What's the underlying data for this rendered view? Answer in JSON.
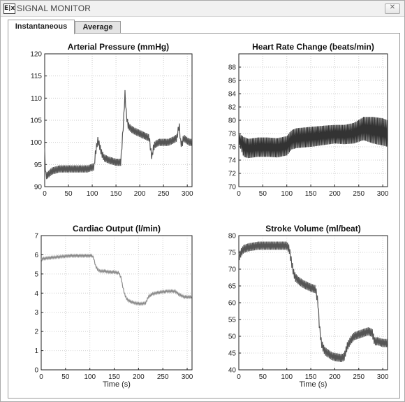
{
  "window": {
    "title": "SIGNAL MONITOR",
    "icon": "app-icon",
    "icon_text": "E|x",
    "close_icon": "close-icon"
  },
  "tabs": [
    {
      "label": "Instantaneous",
      "active": true
    },
    {
      "label": "Average",
      "active": false
    }
  ],
  "chart_data": [
    {
      "type": "line",
      "title": "Arterial Pressure (mmHg)",
      "xlabel": "",
      "ylabel": "",
      "xlim": [
        0,
        310
      ],
      "ylim": [
        90,
        120
      ],
      "xticks": [
        0,
        50,
        100,
        150,
        200,
        250,
        300
      ],
      "yticks": [
        90,
        95,
        100,
        105,
        110,
        115,
        120
      ],
      "grid": true,
      "color": "#555555",
      "oscillation": 0.8,
      "series": [
        {
          "x": [
            0,
            2,
            5,
            15,
            30,
            50,
            70,
            90,
            104,
            106,
            110,
            112,
            116,
            120,
            125,
            135,
            150,
            160,
            163,
            166,
            169,
            172,
            175,
            178,
            182,
            190,
            200,
            210,
            220,
            224,
            226,
            228,
            232,
            240,
            250,
            260,
            270,
            278,
            283,
            286,
            289,
            292,
            298,
            305,
            310
          ],
          "y": [
            98,
            92.5,
            92.5,
            93.5,
            94,
            94,
            94,
            94,
            94.5,
            97,
            99.5,
            100.5,
            99,
            97.5,
            96.5,
            96,
            95.5,
            95.5,
            100,
            105,
            111,
            106,
            104,
            103.5,
            103,
            102.5,
            102,
            101.5,
            101,
            97.5,
            96.5,
            98.5,
            99.5,
            100,
            100,
            100,
            100.5,
            101,
            104,
            100,
            99.5,
            101,
            100.5,
            100,
            100
          ]
        }
      ]
    },
    {
      "type": "line",
      "title": "Heart Rate Change (beats/min)",
      "xlabel": "",
      "ylabel": "",
      "xlim": [
        0,
        310
      ],
      "ylim": [
        70,
        90
      ],
      "xticks": [
        0,
        50,
        100,
        150,
        200,
        250,
        300
      ],
      "yticks": [
        70,
        72,
        74,
        76,
        78,
        80,
        82,
        84,
        86,
        88
      ],
      "grid": true,
      "color": "#333333",
      "oscillation": 1.7,
      "series": [
        {
          "x": [
            0,
            10,
            20,
            40,
            60,
            80,
            100,
            110,
            120,
            150,
            180,
            200,
            220,
            240,
            260,
            280,
            300,
            310
          ],
          "y": [
            78,
            77.5,
            77.2,
            77.4,
            77.4,
            77.3,
            77.6,
            78.5,
            78.8,
            79,
            79.2,
            79.3,
            79.3,
            79.6,
            80.5,
            80.5,
            80.3,
            80
          ]
        }
      ],
      "lower_band": [
        [
          0,
          10,
          20,
          40,
          60,
          80,
          100,
          110,
          120,
          150,
          180,
          200,
          220,
          240,
          260,
          280,
          300,
          310
        ],
        [
          76.5,
          74.5,
          74.3,
          74.5,
          74.5,
          74.4,
          74.7,
          75.6,
          75.8,
          76,
          76.3,
          76.5,
          76.4,
          76.5,
          77,
          76.5,
          76.2,
          76
        ]
      ]
    },
    {
      "type": "line",
      "title": "Cardiac Output (l/min)",
      "xlabel": "Time (s)",
      "ylabel": "",
      "xlim": [
        0,
        310
      ],
      "ylim": [
        0,
        7
      ],
      "xticks": [
        0,
        50,
        100,
        150,
        200,
        250,
        300
      ],
      "yticks": [
        0,
        1,
        2,
        3,
        4,
        5,
        6,
        7
      ],
      "grid": true,
      "color": "#8a8a8a",
      "oscillation": 0.05,
      "series": [
        {
          "x": [
            0,
            5,
            20,
            40,
            60,
            80,
            100,
            105,
            108,
            112,
            116,
            120,
            130,
            140,
            150,
            160,
            164,
            168,
            172,
            176,
            180,
            185,
            190,
            200,
            210,
            215,
            220,
            228,
            235,
            245,
            260,
            275,
            285,
            295,
            310
          ],
          "y": [
            5.75,
            5.8,
            5.85,
            5.9,
            5.95,
            5.95,
            5.95,
            5.95,
            5.8,
            5.4,
            5.25,
            5.15,
            5.15,
            5.1,
            5.1,
            5.05,
            4.8,
            4.3,
            3.9,
            3.7,
            3.6,
            3.55,
            3.5,
            3.45,
            3.45,
            3.5,
            3.8,
            3.95,
            4.0,
            4.05,
            4.1,
            4.1,
            3.9,
            3.8,
            3.8
          ]
        }
      ]
    },
    {
      "type": "line",
      "title": "Stroke Volume (ml/beat)",
      "xlabel": "Time (s)",
      "ylabel": "",
      "xlim": [
        0,
        310
      ],
      "ylim": [
        40,
        80
      ],
      "xticks": [
        0,
        50,
        100,
        150,
        200,
        250,
        300
      ],
      "yticks": [
        40,
        45,
        50,
        55,
        60,
        65,
        70,
        75,
        80
      ],
      "grid": true,
      "color": "#555555",
      "oscillation": 1.2,
      "series": [
        {
          "x": [
            0,
            5,
            10,
            20,
            40,
            60,
            80,
            100,
            105,
            110,
            114,
            118,
            125,
            135,
            150,
            160,
            165,
            168,
            172,
            176,
            180,
            185,
            190,
            195,
            205,
            215,
            220,
            226,
            232,
            240,
            250,
            260,
            270,
            278,
            283,
            290,
            300,
            310
          ],
          "y": [
            73.5,
            75,
            76,
            76.5,
            77,
            77,
            77,
            77,
            76,
            72,
            69,
            67.5,
            66.5,
            65.5,
            64.5,
            64,
            60,
            53,
            48,
            46.5,
            45.5,
            45,
            44.5,
            44,
            43.7,
            43.5,
            44,
            47,
            48.5,
            50,
            50.5,
            51,
            51.5,
            51,
            48.5,
            48.5,
            48,
            48
          ]
        }
      ]
    }
  ]
}
